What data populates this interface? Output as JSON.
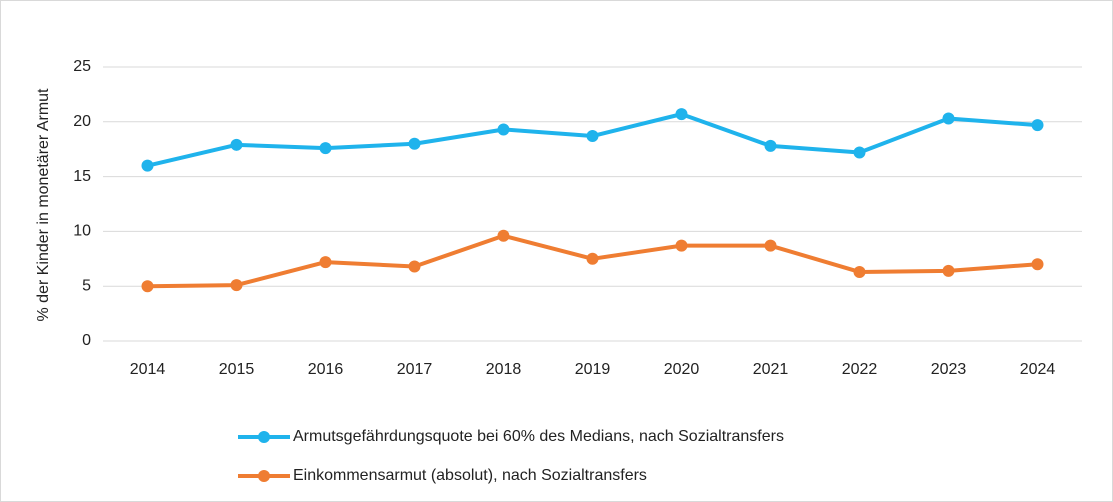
{
  "chart_data": {
    "type": "line",
    "y_label": "% der Kinder in monetärer Armut",
    "categories": [
      "2014",
      "2015",
      "2016",
      "2017",
      "2018",
      "2019",
      "2020",
      "2021",
      "2022",
      "2023",
      "2024"
    ],
    "series": [
      {
        "name": "Armutsgefährdungsquote bei 60% des Medians, nach Sozialtransfers",
        "color": "#1fb3ec",
        "values": [
          16.0,
          17.9,
          17.6,
          18.0,
          19.3,
          18.7,
          20.7,
          17.8,
          17.2,
          20.3,
          19.7
        ]
      },
      {
        "name": "Einkommensarmut (absolut), nach Sozialtransfers",
        "color": "#ef7d32",
        "values": [
          5.0,
          5.1,
          7.2,
          6.8,
          9.6,
          7.5,
          8.7,
          8.7,
          6.3,
          6.4,
          7.0
        ]
      }
    ],
    "ylim": [
      0,
      25
    ],
    "yticks": [
      0,
      5,
      10,
      15,
      20,
      25
    ],
    "grid": true,
    "legend": "bottom"
  }
}
